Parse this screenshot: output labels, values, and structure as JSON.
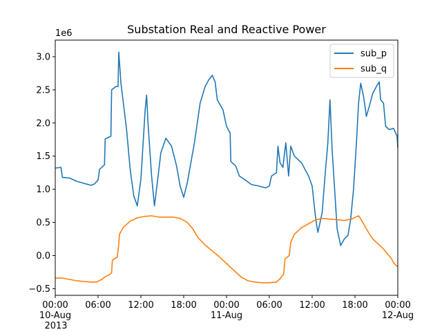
{
  "chart_data": {
    "type": "line",
    "title": "Substation Real and Reactive Power",
    "xlabel": "",
    "ylabel": "",
    "y_offset_label": "1e6",
    "x_unit": "hours since 2013-08-10 00:00",
    "xlim": [
      0,
      48
    ],
    "ylim": [
      -0.6,
      3.25
    ],
    "grid": false,
    "legend_position": "upper right",
    "x_ticks": [
      {
        "x": 0,
        "line1": "00:00",
        "line2": "10-Aug",
        "line3": "2013"
      },
      {
        "x": 6,
        "line1": "06:00",
        "line2": "",
        "line3": ""
      },
      {
        "x": 12,
        "line1": "12:00",
        "line2": "",
        "line3": ""
      },
      {
        "x": 18,
        "line1": "18:00",
        "line2": "",
        "line3": ""
      },
      {
        "x": 24,
        "line1": "00:00",
        "line2": "11-Aug",
        "line3": ""
      },
      {
        "x": 30,
        "line1": "06:00",
        "line2": "",
        "line3": ""
      },
      {
        "x": 36,
        "line1": "12:00",
        "line2": "",
        "line3": ""
      },
      {
        "x": 42,
        "line1": "18:00",
        "line2": "",
        "line3": ""
      },
      {
        "x": 48,
        "line1": "00:00",
        "line2": "12-Aug",
        "line3": ""
      }
    ],
    "y_ticks": [
      {
        "y": -0.5,
        "label": "−0.5"
      },
      {
        "y": 0.0,
        "label": "0.0"
      },
      {
        "y": 0.5,
        "label": "0.5"
      },
      {
        "y": 1.0,
        "label": "1.0"
      },
      {
        "y": 1.5,
        "label": "1.5"
      },
      {
        "y": 2.0,
        "label": "2.0"
      },
      {
        "y": 2.5,
        "label": "2.5"
      },
      {
        "y": 3.0,
        "label": "3.0"
      }
    ],
    "series": [
      {
        "name": "sub_p",
        "color": "#1f77b4",
        "points": [
          [
            0,
            1.32
          ],
          [
            0.8,
            1.33
          ],
          [
            1.0,
            1.18
          ],
          [
            2.0,
            1.17
          ],
          [
            3.0,
            1.12
          ],
          [
            4.0,
            1.09
          ],
          [
            5.0,
            1.06
          ],
          [
            5.5,
            1.08
          ],
          [
            6.0,
            1.14
          ],
          [
            6.2,
            1.3
          ],
          [
            6.9,
            1.37
          ],
          [
            7.0,
            1.76
          ],
          [
            7.8,
            1.8
          ],
          [
            7.9,
            2.5
          ],
          [
            8.5,
            2.55
          ],
          [
            8.8,
            2.55
          ],
          [
            8.9,
            3.07
          ],
          [
            9.2,
            2.6
          ],
          [
            10.0,
            1.9
          ],
          [
            10.5,
            1.3
          ],
          [
            11.0,
            0.9
          ],
          [
            11.5,
            0.75
          ],
          [
            12.0,
            1.15
          ],
          [
            12.6,
            2.2
          ],
          [
            12.8,
            2.42
          ],
          [
            13.0,
            2.0
          ],
          [
            13.5,
            1.2
          ],
          [
            13.9,
            0.75
          ],
          [
            14.3,
            1.1
          ],
          [
            14.8,
            1.55
          ],
          [
            15.5,
            1.77
          ],
          [
            16.3,
            1.65
          ],
          [
            17.0,
            1.35
          ],
          [
            17.5,
            1.05
          ],
          [
            18.0,
            0.88
          ],
          [
            18.5,
            1.1
          ],
          [
            19.5,
            1.7
          ],
          [
            20.3,
            2.3
          ],
          [
            21.0,
            2.55
          ],
          [
            21.5,
            2.65
          ],
          [
            22.0,
            2.72
          ],
          [
            22.4,
            2.62
          ],
          [
            22.7,
            2.35
          ],
          [
            23.5,
            2.2
          ],
          [
            24.0,
            1.95
          ],
          [
            24.5,
            1.85
          ],
          [
            24.6,
            1.42
          ],
          [
            25.3,
            1.35
          ],
          [
            25.8,
            1.2
          ],
          [
            26.5,
            1.15
          ],
          [
            27.5,
            1.07
          ],
          [
            28.5,
            1.05
          ],
          [
            29.5,
            1.02
          ],
          [
            30.0,
            1.05
          ],
          [
            30.3,
            1.2
          ],
          [
            31.0,
            1.25
          ],
          [
            31.2,
            1.65
          ],
          [
            31.5,
            1.4
          ],
          [
            31.9,
            1.33
          ],
          [
            32.3,
            1.7
          ],
          [
            32.7,
            1.2
          ],
          [
            33.0,
            1.65
          ],
          [
            33.5,
            1.5
          ],
          [
            34.5,
            1.4
          ],
          [
            35.5,
            1.2
          ],
          [
            36.0,
            1.05
          ],
          [
            36.4,
            0.65
          ],
          [
            36.6,
            0.48
          ],
          [
            36.8,
            0.35
          ],
          [
            37.4,
            0.65
          ],
          [
            37.8,
            1.2
          ],
          [
            38.2,
            1.7
          ],
          [
            38.5,
            2.35
          ],
          [
            38.8,
            1.6
          ],
          [
            39.2,
            0.9
          ],
          [
            39.5,
            0.4
          ],
          [
            40.0,
            0.15
          ],
          [
            40.5,
            0.25
          ],
          [
            41.0,
            0.3
          ],
          [
            41.4,
            0.55
          ],
          [
            41.8,
            1.0
          ],
          [
            42.2,
            1.7
          ],
          [
            42.5,
            2.3
          ],
          [
            42.8,
            2.6
          ],
          [
            43.2,
            2.4
          ],
          [
            43.6,
            2.1
          ],
          [
            44.0,
            2.25
          ],
          [
            44.5,
            2.45
          ],
          [
            45.0,
            2.55
          ],
          [
            45.4,
            2.62
          ],
          [
            45.6,
            2.35
          ],
          [
            46.0,
            2.3
          ],
          [
            46.3,
            1.95
          ],
          [
            46.8,
            1.9
          ],
          [
            47.4,
            1.92
          ],
          [
            47.9,
            1.8
          ],
          [
            48.0,
            1.63
          ]
        ]
      },
      {
        "name": "sub_q",
        "color": "#ff7f0e",
        "points": [
          [
            0,
            -0.34
          ],
          [
            1.0,
            -0.34
          ],
          [
            2.0,
            -0.36
          ],
          [
            3.0,
            -0.38
          ],
          [
            4.0,
            -0.39
          ],
          [
            5.0,
            -0.4
          ],
          [
            5.8,
            -0.4
          ],
          [
            6.5,
            -0.36
          ],
          [
            7.0,
            -0.32
          ],
          [
            7.7,
            -0.28
          ],
          [
            7.9,
            -0.26
          ],
          [
            8.0,
            -0.07
          ],
          [
            8.7,
            -0.02
          ],
          [
            8.9,
            0.17
          ],
          [
            9.0,
            0.32
          ],
          [
            9.5,
            0.42
          ],
          [
            10.5,
            0.52
          ],
          [
            11.5,
            0.57
          ],
          [
            12.5,
            0.59
          ],
          [
            13.5,
            0.6
          ],
          [
            14.5,
            0.58
          ],
          [
            15.5,
            0.58
          ],
          [
            16.5,
            0.58
          ],
          [
            17.5,
            0.56
          ],
          [
            18.5,
            0.5
          ],
          [
            19.3,
            0.4
          ],
          [
            20.0,
            0.27
          ],
          [
            21.0,
            0.16
          ],
          [
            22.0,
            0.07
          ],
          [
            23.0,
            -0.02
          ],
          [
            24.0,
            -0.12
          ],
          [
            25.0,
            -0.22
          ],
          [
            26.0,
            -0.32
          ],
          [
            27.0,
            -0.38
          ],
          [
            28.0,
            -0.4
          ],
          [
            29.0,
            -0.41
          ],
          [
            30.0,
            -0.41
          ],
          [
            31.0,
            -0.4
          ],
          [
            31.5,
            -0.35
          ],
          [
            32.0,
            -0.28
          ],
          [
            32.2,
            -0.05
          ],
          [
            32.8,
            0.0
          ],
          [
            33.0,
            0.2
          ],
          [
            33.5,
            0.32
          ],
          [
            34.5,
            0.42
          ],
          [
            35.5,
            0.48
          ],
          [
            36.5,
            0.54
          ],
          [
            37.5,
            0.56
          ],
          [
            38.5,
            0.55
          ],
          [
            39.5,
            0.54
          ],
          [
            40.5,
            0.53
          ],
          [
            41.5,
            0.55
          ],
          [
            42.5,
            0.6
          ],
          [
            43.0,
            0.52
          ],
          [
            43.5,
            0.42
          ],
          [
            44.0,
            0.33
          ],
          [
            44.5,
            0.25
          ],
          [
            45.0,
            0.2
          ],
          [
            45.5,
            0.15
          ],
          [
            46.0,
            0.1
          ],
          [
            46.5,
            0.03
          ],
          [
            47.0,
            -0.03
          ],
          [
            47.5,
            -0.12
          ],
          [
            48.0,
            -0.17
          ]
        ]
      }
    ]
  }
}
